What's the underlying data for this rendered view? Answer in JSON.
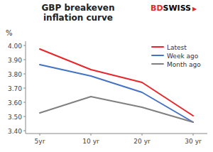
{
  "chart_data": {
    "type": "line",
    "title": "GBP breakeven\ninflation curve",
    "ylabel": "%",
    "categories": [
      "5yr",
      "10 yr",
      "20 yr",
      "30 yr"
    ],
    "series": [
      {
        "name": "Latest",
        "color": "#e8262a",
        "values": [
          3.975,
          3.83,
          3.74,
          3.505
        ]
      },
      {
        "name": "Week ago",
        "color": "#4472c4",
        "values": [
          3.865,
          3.785,
          3.67,
          3.46
        ]
      },
      {
        "name": "Month ago",
        "color": "#808080",
        "values": [
          3.525,
          3.64,
          3.565,
          3.46
        ]
      }
    ],
    "ylim": [
      3.38,
      4.03
    ],
    "yticks": [
      {
        "value": 3.4,
        "label": "3.40"
      },
      {
        "value": 3.5,
        "label": "3.50"
      },
      {
        "value": 3.6,
        "label": "3.60"
      },
      {
        "value": 3.7,
        "label": "3.70"
      },
      {
        "value": 3.8,
        "label": "3.80"
      },
      {
        "value": 3.9,
        "label": "3.90"
      },
      {
        "value": 4,
        "label": "4.00"
      }
    ],
    "grid": false,
    "legend": "upper right",
    "annotations": [
      {
        "text": "BD",
        "color": "#e8262a"
      },
      {
        "text": "SWISS",
        "color": "#000000"
      },
      {
        "text": "▶",
        "color": "#e8262a"
      }
    ]
  }
}
